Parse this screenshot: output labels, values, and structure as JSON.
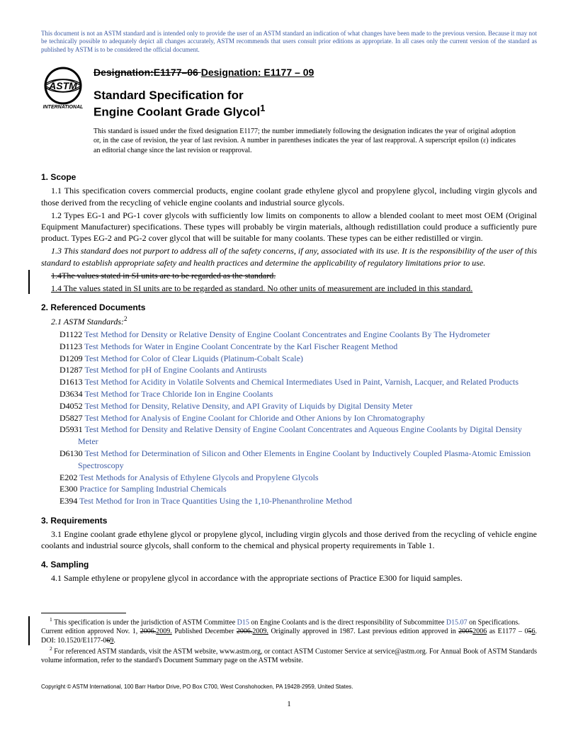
{
  "notice": "This document is not an ASTM standard and is intended only to provide the user of an ASTM standard an indication of what changes have been made to the previous version. Because it may not be technically possible to adequately depict all changes accurately, ASTM recommends that users consult prior editions as appropriate. In all cases only the current version of the standard as published by ASTM is to be considered the official document.",
  "designation_old": "Designation:E1177–06 ",
  "designation_new": "Designation: E1177 – 09",
  "title_line1": "Standard Specification for",
  "title_line2": "Engine Coolant Grade Glycol",
  "issued": "This standard is issued under the fixed designation E1177; the number immediately following the designation indicates the year of original adoption or, in the case of revision, the year of last revision. A number in parentheses indicates the year of last reapproval. A superscript epsilon (ε) indicates an editorial change since the last revision or reapproval.",
  "s1_head": "1.  Scope",
  "s1_1": "1.1  This specification covers commercial products, engine coolant grade ethylene glycol and propylene glycol, including virgin glycols and those derived from the recycling of vehicle engine coolants and industrial source glycols.",
  "s1_2": "1.2  Types EG-1 and PG-1 cover glycols with sufficiently low limits on components to allow a blended coolant to meet most OEM (Original Equipment Manufacturer) specifications. These types will probably be virgin materials, although redistillation could produce a sufficiently pure product. Types EG-2 and PG-2 cover glycol that will be suitable for many coolants. These types can be either redistilled or virgin.",
  "s1_3": "1.3  This standard does not purport to address all of the safety concerns, if any, associated with its use. It is the responsibility of the user of this standard to establish appropriate safety and health practices and determine the applicability of regulatory limitations prior to use.",
  "s1_4_old": "1.4The values stated in SI units are to be regarded as the standard.",
  "s1_4_new": "1.4  The values stated in SI units are to be regarded as standard. No other units of measurement are included in this standard.",
  "s2_head": "2.  Referenced Documents",
  "s2_sub": "2.1  ASTM Standards:",
  "refs": [
    {
      "id": "D1122",
      "t": "Test Method for Density or Relative Density of Engine Coolant Concentrates and Engine Coolants By The Hydrometer"
    },
    {
      "id": "D1123",
      "t": "Test Methods for Water in Engine Coolant Concentrate by the Karl Fischer Reagent Method"
    },
    {
      "id": "D1209",
      "t": "Test Method for Color of Clear Liquids (Platinum-Cobalt Scale)"
    },
    {
      "id": "D1287",
      "t": "Test Method for pH of Engine Coolants and Antirusts"
    },
    {
      "id": "D1613",
      "t": "Test Method for Acidity in Volatile Solvents and Chemical Intermediates Used in Paint, Varnish, Lacquer, and Related Products"
    },
    {
      "id": "D3634",
      "t": "Test Method for Trace Chloride Ion in Engine Coolants"
    },
    {
      "id": "D4052",
      "t": "Test Method for Density, Relative Density, and API Gravity of Liquids by Digital Density Meter"
    },
    {
      "id": "D5827",
      "t": "Test Method for Analysis of Engine Coolant for Chloride and Other Anions by Ion Chromatography"
    },
    {
      "id": "D5931",
      "t": "Test Method for Density and Relative Density of Engine Coolant Concentrates and Aqueous Engine Coolants by Digital Density Meter"
    },
    {
      "id": "D6130",
      "t": "Test Method for Determination of Silicon and Other Elements in Engine Coolant by Inductively Coupled Plasma-Atomic Emission Spectroscopy"
    },
    {
      "id": "E202",
      "t": "Test Methods for Analysis of Ethylene Glycols and Propylene Glycols"
    },
    {
      "id": "E300",
      "t": "Practice for Sampling Industrial Chemicals"
    },
    {
      "id": "E394",
      "t": "Test Method for Iron in Trace Quantities Using the 1,10-Phenanthroline Method"
    }
  ],
  "s3_head": "3.  Requirements",
  "s3_1": "3.1  Engine coolant grade ethylene glycol or propylene glycol, including virgin glycols and those derived from the recycling of vehicle engine coolants and industrial source glycols, shall conform to the chemical and physical property requirements in Table 1.",
  "s4_head": "4.  Sampling",
  "s4_1": "4.1  Sample ethylene or propylene glycol in accordance with the appropriate sections of Practice E300 for liquid samples.",
  "fn1_a": " This specification is under the jurisdiction of ASTM Committee ",
  "fn1_link1": "D15",
  "fn1_b": " on Engine Coolants and is the direct responsibility of Subcommittee ",
  "fn1_link2": "D15.07",
  "fn1_c": " on Specifications.",
  "fn1_line2_a": "Current edition approved Nov. 1, ",
  "fn1_old1": "2006.",
  "fn1_new1": "2009.",
  "fn1_line2_b": " Published December ",
  "fn1_old2": "2006.",
  "fn1_new2": "2009.",
  "fn1_line2_c": " Originally approved in 1987. Last previous edition approved in ",
  "fn1_old3": "2005",
  "fn1_new3": "2006",
  "fn1_line2_d": " as E1177 – 0",
  "fn1_old4": "5",
  "fn1_new4": "6",
  "fn1_line2_e": ". DOI: 10.1520/E1177-0",
  "fn1_old5": "6",
  "fn1_new5": "9",
  "fn1_line2_f": ".",
  "fn2": " For referenced ASTM standards, visit the ASTM website, www.astm.org, or contact ASTM Customer Service at service@astm.org. For Annual Book of ASTM Standards volume information, refer to the standard's Document Summary page on the ASTM website.",
  "copyright": "Copyright © ASTM International, 100 Barr Harbor Drive, PO Box C700, West Conshohocken, PA 19428-2959, United States.",
  "page_num": "1",
  "colors": {
    "link": "#3b5aa3"
  }
}
